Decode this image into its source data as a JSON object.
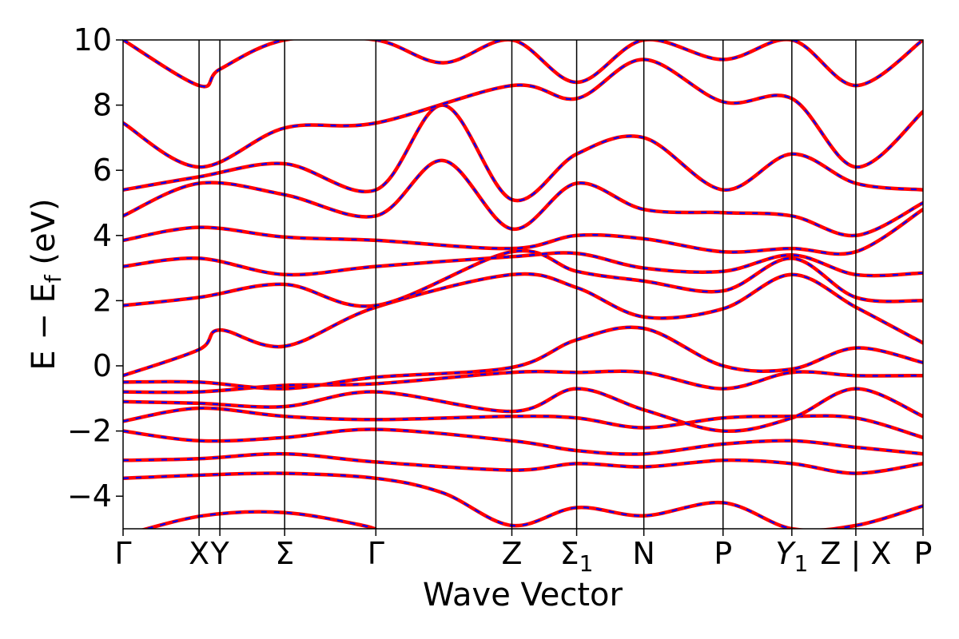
{
  "chart_data": {
    "type": "line",
    "title": "",
    "xlabel": "Wave Vector",
    "ylabel": "E − E_f (eV)",
    "ylabel_parts": {
      "main": "E − E",
      "sub": "f",
      "unit": " (eV)"
    },
    "ylim": [
      -5,
      10
    ],
    "yticks": [
      -4,
      -2,
      0,
      2,
      4,
      6,
      8,
      10
    ],
    "ytick_labels": [
      "−4",
      "−2",
      "0",
      "2",
      "4",
      "6",
      "8",
      "10"
    ],
    "k_range": [
      0,
      1
    ],
    "high_symmetry_points": [
      {
        "label": "Γ",
        "k": 0.0
      },
      {
        "label": "X",
        "k": 0.095
      },
      {
        "label": "Y",
        "k": 0.121
      },
      {
        "label": "Σ",
        "k": 0.202
      },
      {
        "label": "Γ",
        "k": 0.316
      },
      {
        "label": "Z",
        "k": 0.486
      },
      {
        "label": "Σ",
        "sub": "1",
        "k": 0.567
      },
      {
        "label": "N",
        "k": 0.651
      },
      {
        "label": "P",
        "k": 0.75
      },
      {
        "label": "Y",
        "sub": "1",
        "k": 0.836
      },
      {
        "label": "Z | X",
        "k": 0.916
      },
      {
        "label": "P",
        "k": 1.0
      }
    ],
    "grid": false,
    "legend": "none",
    "series_style": [
      {
        "color": "#ff0000",
        "line": "solid"
      },
      {
        "color": "#0000ff",
        "line": "dashed"
      }
    ],
    "bands": [
      [
        [
          0.0,
          -5.2
        ],
        [
          0.1,
          -4.6
        ],
        [
          0.2,
          -4.5
        ],
        [
          0.3,
          -4.9
        ],
        [
          0.32,
          -5.1
        ]
      ],
      [
        [
          0.0,
          -3.45
        ],
        [
          0.1,
          -3.35
        ],
        [
          0.2,
          -3.3
        ],
        [
          0.316,
          -3.45
        ],
        [
          0.4,
          -3.9
        ],
        [
          0.486,
          -4.9
        ],
        [
          0.567,
          -4.35
        ],
        [
          0.651,
          -4.6
        ],
        [
          0.75,
          -4.2
        ],
        [
          0.836,
          -5.0
        ],
        [
          0.916,
          -4.9
        ],
        [
          1.0,
          -4.3
        ]
      ],
      [
        [
          0.0,
          -2.9
        ],
        [
          0.095,
          -2.85
        ],
        [
          0.202,
          -2.7
        ],
        [
          0.316,
          -2.95
        ],
        [
          0.486,
          -3.2
        ],
        [
          0.567,
          -3.0
        ],
        [
          0.651,
          -3.1
        ],
        [
          0.75,
          -2.9
        ],
        [
          0.836,
          -3.0
        ],
        [
          0.916,
          -3.3
        ],
        [
          1.0,
          -3.0
        ]
      ],
      [
        [
          0.0,
          -2.0
        ],
        [
          0.095,
          -2.3
        ],
        [
          0.202,
          -2.2
        ],
        [
          0.316,
          -1.95
        ],
        [
          0.486,
          -2.3
        ],
        [
          0.567,
          -2.6
        ],
        [
          0.651,
          -2.7
        ],
        [
          0.75,
          -2.4
        ],
        [
          0.836,
          -2.3
        ],
        [
          0.916,
          -2.5
        ],
        [
          1.0,
          -2.7
        ]
      ],
      [
        [
          0.0,
          -1.7
        ],
        [
          0.095,
          -1.3
        ],
        [
          0.202,
          -1.55
        ],
        [
          0.316,
          -1.65
        ],
        [
          0.486,
          -1.55
        ],
        [
          0.567,
          -1.6
        ],
        [
          0.651,
          -1.9
        ],
        [
          0.75,
          -1.6
        ],
        [
          0.836,
          -1.55
        ],
        [
          0.916,
          -1.6
        ],
        [
          1.0,
          -2.2
        ]
      ],
      [
        [
          0.0,
          -1.1
        ],
        [
          0.095,
          -1.15
        ],
        [
          0.202,
          -1.25
        ],
        [
          0.316,
          -0.8
        ],
        [
          0.486,
          -1.4
        ],
        [
          0.567,
          -0.7
        ],
        [
          0.651,
          -1.35
        ],
        [
          0.75,
          -2.0
        ],
        [
          0.836,
          -1.6
        ],
        [
          0.916,
          -0.7
        ],
        [
          1.0,
          -1.55
        ]
      ],
      [
        [
          0.0,
          -0.8
        ],
        [
          0.095,
          -0.8
        ],
        [
          0.202,
          -0.6
        ],
        [
          0.316,
          -0.55
        ],
        [
          0.486,
          -0.2
        ],
        [
          0.567,
          -0.2
        ],
        [
          0.651,
          -0.2
        ],
        [
          0.75,
          -0.7
        ],
        [
          0.836,
          -0.2
        ],
        [
          0.916,
          -0.3
        ],
        [
          1.0,
          -0.3
        ]
      ],
      [
        [
          0.0,
          -0.5
        ],
        [
          0.095,
          -0.5
        ],
        [
          0.202,
          -0.7
        ],
        [
          0.316,
          -0.35
        ],
        [
          0.486,
          -0.05
        ],
        [
          0.567,
          0.8
        ],
        [
          0.651,
          1.15
        ],
        [
          0.75,
          0.0
        ],
        [
          0.836,
          -0.1
        ],
        [
          0.916,
          0.55
        ],
        [
          1.0,
          0.1
        ]
      ],
      [
        [
          0.0,
          -0.3
        ],
        [
          0.095,
          0.5
        ],
        [
          0.121,
          1.1
        ],
        [
          0.202,
          0.6
        ],
        [
          0.316,
          1.8
        ],
        [
          0.486,
          2.8
        ],
        [
          0.567,
          2.4
        ],
        [
          0.651,
          1.5
        ],
        [
          0.75,
          1.75
        ],
        [
          0.836,
          2.8
        ],
        [
          0.916,
          1.8
        ],
        [
          1.0,
          0.7
        ]
      ],
      [
        [
          0.0,
          1.85
        ],
        [
          0.095,
          2.1
        ],
        [
          0.202,
          2.5
        ],
        [
          0.316,
          1.85
        ],
        [
          0.486,
          3.5
        ],
        [
          0.567,
          2.9
        ],
        [
          0.651,
          2.6
        ],
        [
          0.75,
          2.3
        ],
        [
          0.836,
          3.3
        ],
        [
          0.916,
          2.1
        ],
        [
          1.0,
          2.0
        ]
      ],
      [
        [
          0.0,
          3.05
        ],
        [
          0.095,
          3.3
        ],
        [
          0.202,
          2.8
        ],
        [
          0.316,
          3.05
        ],
        [
          0.486,
          3.35
        ],
        [
          0.567,
          3.45
        ],
        [
          0.651,
          3.0
        ],
        [
          0.75,
          2.9
        ],
        [
          0.836,
          3.4
        ],
        [
          0.916,
          2.8
        ],
        [
          1.0,
          2.85
        ]
      ],
      [
        [
          0.0,
          3.85
        ],
        [
          0.095,
          4.25
        ],
        [
          0.202,
          3.95
        ],
        [
          0.316,
          3.85
        ],
        [
          0.486,
          3.6
        ],
        [
          0.567,
          4.0
        ],
        [
          0.651,
          3.9
        ],
        [
          0.75,
          3.5
        ],
        [
          0.836,
          3.6
        ],
        [
          0.916,
          3.5
        ],
        [
          1.0,
          4.8
        ]
      ],
      [
        [
          0.0,
          4.6
        ],
        [
          0.095,
          5.6
        ],
        [
          0.202,
          5.25
        ],
        [
          0.316,
          4.6
        ],
        [
          0.4,
          6.3
        ],
        [
          0.486,
          4.2
        ],
        [
          0.567,
          5.6
        ],
        [
          0.651,
          4.8
        ],
        [
          0.75,
          4.7
        ],
        [
          0.836,
          4.6
        ],
        [
          0.916,
          4.0
        ],
        [
          1.0,
          5.0
        ]
      ],
      [
        [
          0.0,
          5.4
        ],
        [
          0.095,
          5.8
        ],
        [
          0.202,
          6.2
        ],
        [
          0.316,
          5.4
        ],
        [
          0.4,
          8.0
        ],
        [
          0.486,
          5.1
        ],
        [
          0.567,
          6.5
        ],
        [
          0.651,
          7.0
        ],
        [
          0.75,
          5.4
        ],
        [
          0.836,
          6.5
        ],
        [
          0.916,
          5.6
        ],
        [
          1.0,
          5.4
        ]
      ],
      [
        [
          0.0,
          7.45
        ],
        [
          0.095,
          6.1
        ],
        [
          0.202,
          7.3
        ],
        [
          0.316,
          7.45
        ],
        [
          0.486,
          8.6
        ],
        [
          0.567,
          8.2
        ],
        [
          0.651,
          9.4
        ],
        [
          0.75,
          8.1
        ],
        [
          0.836,
          8.2
        ],
        [
          0.916,
          6.1
        ],
        [
          1.0,
          7.8
        ]
      ],
      [
        [
          0.0,
          10.0
        ],
        [
          0.095,
          8.6
        ],
        [
          0.121,
          9.1
        ],
        [
          0.202,
          10.0
        ],
        [
          0.316,
          10.0
        ],
        [
          0.4,
          9.3
        ],
        [
          0.486,
          10.0
        ],
        [
          0.567,
          8.7
        ],
        [
          0.651,
          10.0
        ],
        [
          0.75,
          9.4
        ],
        [
          0.836,
          10.0
        ],
        [
          0.916,
          8.6
        ],
        [
          1.0,
          10.0
        ]
      ]
    ]
  }
}
